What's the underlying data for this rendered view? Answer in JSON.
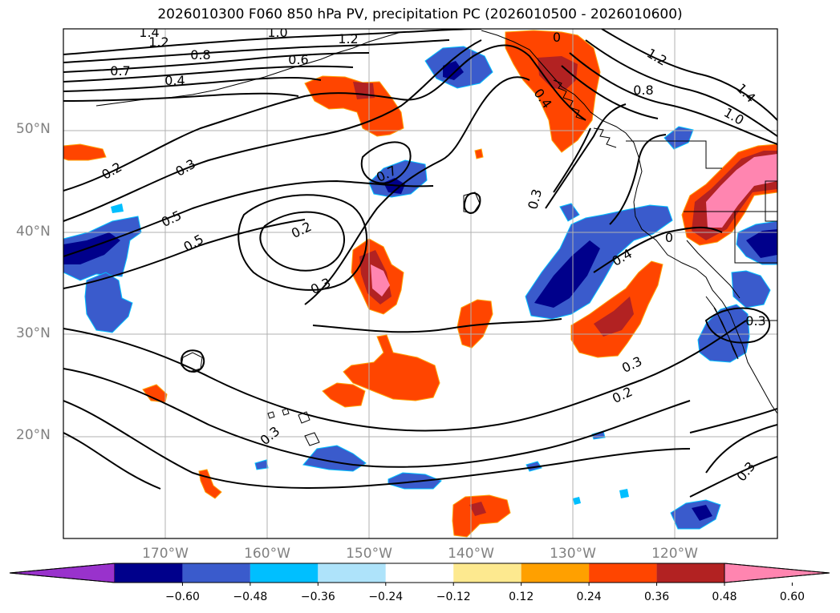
{
  "title": "2026010300 F060 850 hPa PV, precipitation PC (2026010500 - 2026010600)",
  "lat_labels": [
    "50°N",
    "40°N",
    "30°N",
    "20°N"
  ],
  "lon_labels": [
    "170°W",
    "160°W",
    "150°W",
    "140°W",
    "130°W",
    "120°W"
  ],
  "colorbar": {
    "ticks": [
      "−0.60",
      "−0.48",
      "−0.36",
      "−0.24",
      "−0.12",
      "0.12",
      "0.24",
      "0.36",
      "0.48",
      "0.60"
    ],
    "colors": [
      "#9932cc",
      "#00008b",
      "#3a5bcc",
      "#00bfff",
      "#aee3fa",
      "#ffffff",
      "#fde98f",
      "#ffa000",
      "#ff4500",
      "#b22222",
      "#ff85b0"
    ]
  },
  "contour_labels": [
    "1.4",
    "1.2",
    "1.0",
    "1.2",
    "0.6",
    "0.8",
    "0.7",
    "0.4",
    "0.3",
    "0.2",
    "0.5",
    "0.5",
    "0.2",
    "0.3",
    "0.7",
    "0.3",
    "0.4",
    "0.4",
    "0.8",
    "1.2",
    "1.4",
    "1.0",
    "0.3",
    "0.3",
    "0.2",
    "0.3",
    "0.3",
    "0",
    "0"
  ],
  "map_extent": {
    "lon_min": -180,
    "lon_max": -110,
    "lat_min": 10,
    "lat_max": 60
  }
}
